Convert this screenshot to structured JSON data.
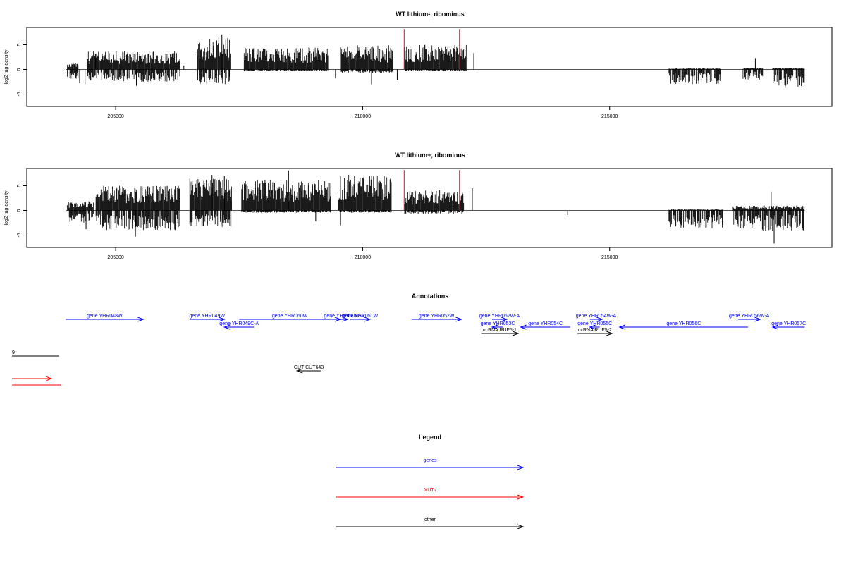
{
  "colors": {
    "genes": "#0000ff",
    "XUTs": "#ff0000",
    "other": "#000000",
    "frame": "#000000",
    "signal": "#000000"
  },
  "chart_data": [
    {
      "type": "bar",
      "title": "WT lithium-, ribominus",
      "xlabel": "",
      "ylabel": "log2 tag density",
      "xlim": [
        203200,
        219500
      ],
      "ylim": [
        -7.5,
        8.5
      ],
      "x_ticks": [
        205000,
        210000,
        215000
      ],
      "x_tick_labels": [
        "205000",
        "210000",
        "215000"
      ],
      "y_ticks": [
        -5,
        0,
        5
      ],
      "y_tick_labels": [
        "-5",
        "0",
        "5"
      ],
      "baseline": {
        "x_range": [
          204000,
          218950
        ]
      },
      "regions": [
        {
          "x": [
            204020,
            204250
          ],
          "pos": 1.0,
          "neg": 1.8
        },
        {
          "x": [
            204420,
            206300
          ],
          "pos": 3.0,
          "neg": 2.2
        },
        {
          "x": [
            206650,
            207320
          ],
          "pos": 5.2,
          "neg": 2.6
        },
        {
          "x": [
            207600,
            209300
          ],
          "pos": 3.6,
          "neg": 0.3
        },
        {
          "x": [
            209550,
            210620
          ],
          "pos": 4.0,
          "neg": 0.6
        },
        {
          "x": [
            210850,
            212100
          ],
          "pos": 4.0,
          "neg": 0.3
        },
        {
          "x": [
            216200,
            217250
          ],
          "pos": 0.2,
          "neg": 2.6
        },
        {
          "x": [
            217700,
            218100
          ],
          "pos": 0.3,
          "neg": 1.8
        },
        {
          "x": [
            218300,
            218950
          ],
          "pos": 0.3,
          "neg": 3.3
        }
      ],
      "spikes": [
        {
          "x": 204270,
          "y": -2.8
        },
        {
          "x": 204380,
          "y": -3.0
        },
        {
          "x": 204600,
          "y": 2.4
        },
        {
          "x": 205420,
          "y": -3.3
        },
        {
          "x": 206380,
          "y": 0.8
        },
        {
          "x": 207150,
          "y": 7.1
        },
        {
          "x": 207300,
          "y": -2.3
        },
        {
          "x": 209450,
          "y": -1.8
        },
        {
          "x": 210180,
          "y": -3.0
        },
        {
          "x": 210700,
          "y": -2.1
        },
        {
          "x": 212250,
          "y": 3.3
        },
        {
          "x": 217950,
          "y": 2.3
        }
      ],
      "xut_markers": [
        {
          "x": 210840,
          "y": 8.2
        },
        {
          "x": 211960,
          "y": 8.2
        }
      ]
    },
    {
      "type": "bar",
      "title": "WT lithium+, ribominus",
      "xlabel": "",
      "ylabel": "log2 tag density",
      "xlim": [
        203200,
        219500
      ],
      "ylim": [
        -7.5,
        8.5
      ],
      "x_ticks": [
        205000,
        210000,
        215000
      ],
      "x_tick_labels": [
        "205000",
        "210000",
        "215000"
      ],
      "y_ticks": [
        -5,
        0,
        5
      ],
      "y_tick_labels": [
        "-5",
        "0",
        "5"
      ],
      "baseline": {
        "x_range": [
          204000,
          218950
        ]
      },
      "regions": [
        {
          "x": [
            204020,
            204550
          ],
          "pos": 1.5,
          "neg": 2.2
        },
        {
          "x": [
            204600,
            206300
          ],
          "pos": 4.0,
          "neg": 3.5
        },
        {
          "x": [
            206500,
            207350
          ],
          "pos": 5.2,
          "neg": 3.0
        },
        {
          "x": [
            207550,
            209350
          ],
          "pos": 5.0,
          "neg": 0.4
        },
        {
          "x": [
            209500,
            210580
          ],
          "pos": 5.8,
          "neg": 0.4
        },
        {
          "x": [
            210850,
            212050
          ],
          "pos": 3.3,
          "neg": 0.6
        },
        {
          "x": [
            216200,
            217300
          ],
          "pos": 0.2,
          "neg": 3.2
        },
        {
          "x": [
            217500,
            218950
          ],
          "pos": 0.8,
          "neg": 3.6
        }
      ],
      "spikes": [
        {
          "x": 204400,
          "y": -3.8
        },
        {
          "x": 205400,
          "y": -5.3
        },
        {
          "x": 206950,
          "y": 7.2
        },
        {
          "x": 207200,
          "y": 7.0
        },
        {
          "x": 208500,
          "y": 8.1
        },
        {
          "x": 209050,
          "y": -2.2
        },
        {
          "x": 209550,
          "y": -3.0
        },
        {
          "x": 212220,
          "y": 4.5
        },
        {
          "x": 214150,
          "y": -0.9
        },
        {
          "x": 218270,
          "y": 3.8
        },
        {
          "x": 218330,
          "y": -6.7
        }
      ],
      "xut_markers": [
        {
          "x": 210840,
          "y": 8.2
        },
        {
          "x": 211960,
          "y": 8.2
        }
      ]
    }
  ],
  "annotations": {
    "title": "Annotations",
    "genes": [
      {
        "label": "gene YHR048W",
        "x": [
          203990,
          205560
        ],
        "row": 0,
        "strand": "+"
      },
      {
        "label": "gene YHR049W",
        "x": [
          206500,
          207200
        ],
        "row": 0,
        "strand": "+"
      },
      {
        "label": "gene YHR049C-A",
        "x": [
          207200,
          207800
        ],
        "row": 1,
        "strand": "-"
      },
      {
        "label": "gene YHR050W",
        "x": [
          207500,
          209550
        ],
        "row": 0,
        "strand": "+"
      },
      {
        "label": "gene YHR050W-A",
        "x": [
          209550,
          209700
        ],
        "row": 0,
        "strand": "+"
      },
      {
        "label": "gene YHR051W",
        "x": [
          209750,
          210150
        ],
        "row": 0,
        "strand": "+"
      },
      {
        "label": "gene YHR052W",
        "x": [
          210990,
          212000
        ],
        "row": 0,
        "strand": "+"
      },
      {
        "label": "gene YHR052W-A",
        "x": [
          212620,
          212920
        ],
        "row": 0,
        "strand": "+"
      },
      {
        "label": "gene YHR053C",
        "x": [
          212620,
          212850
        ],
        "row": 1,
        "strand": "-"
      },
      {
        "label": "gene YHR054C",
        "x": [
          213200,
          214200
        ],
        "row": 1,
        "strand": "-"
      },
      {
        "label": "gene YHR054W-A",
        "x": [
          214600,
          214850
        ],
        "row": 0,
        "strand": "+"
      },
      {
        "label": "gene YHR055C",
        "x": [
          214600,
          214800
        ],
        "row": 1,
        "strand": "-"
      },
      {
        "label": "gene YHR056C",
        "x": [
          215200,
          217800
        ],
        "row": 1,
        "strand": "-"
      },
      {
        "label": "gene YHR056W-A",
        "x": [
          217600,
          218050
        ],
        "row": 0,
        "strand": "+"
      },
      {
        "label": "gene YHR057C",
        "x": [
          218300,
          218950
        ],
        "row": 1,
        "strand": "-"
      }
    ],
    "others": [
      {
        "label": "ncRNA RUF5-1",
        "x": [
          212400,
          213150
        ],
        "row": 2,
        "strand": "+"
      },
      {
        "label": "ncRNA RUF5-2",
        "x": [
          214350,
          215050
        ],
        "row": 2,
        "strand": "+"
      },
      {
        "label": "CUT CUT643",
        "x": [
          208670,
          209150
        ],
        "row": 4,
        "strand": "-"
      },
      {
        "label": "9",
        "x": [
          202900,
          203850
        ],
        "row": 3,
        "strand": "none"
      }
    ],
    "xuts": [
      {
        "label": "",
        "x": [
          202900,
          203700
        ],
        "row": 5,
        "strand": "+"
      },
      {
        "label": "",
        "x": [
          202900,
          203900
        ],
        "row": 6,
        "strand": "none"
      }
    ]
  },
  "legend": {
    "title": "Legend",
    "items": [
      {
        "label": "genes",
        "color": "#0000ff"
      },
      {
        "label": "XUTs",
        "color": "#ff0000"
      },
      {
        "label": "other",
        "color": "#000000"
      }
    ]
  }
}
